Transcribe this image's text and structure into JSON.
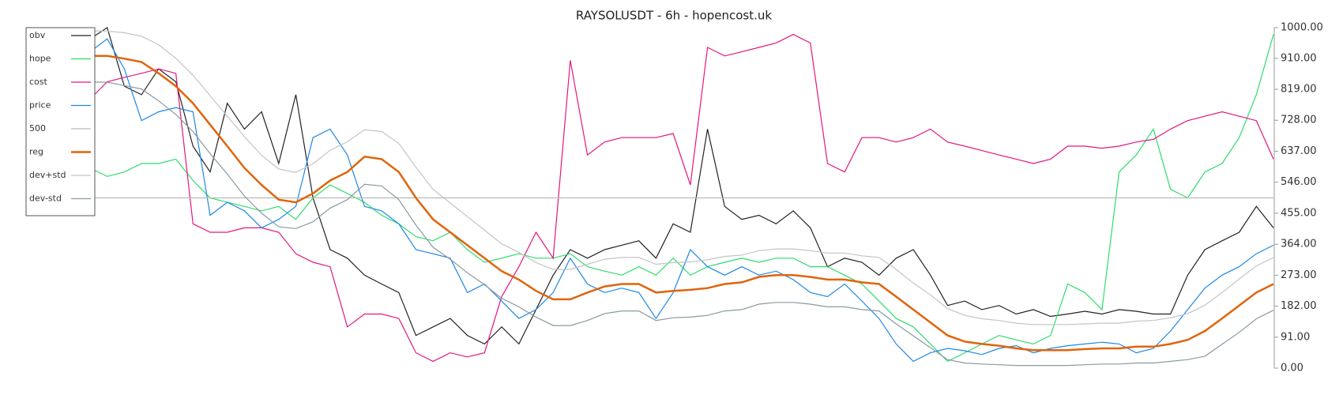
{
  "chart_data": {
    "type": "line",
    "title": "RAYSOLUSDT - 6h - hopencost.uk",
    "legend": "upper left",
    "ylim": [
      0,
      1000
    ],
    "yticks": [
      {
        "value": 0,
        "label": "0.00"
      },
      {
        "value": 91,
        "label": "91.00"
      },
      {
        "value": 182,
        "label": "182.00"
      },
      {
        "value": 273,
        "label": "273.00"
      },
      {
        "value": 364,
        "label": "364.00"
      },
      {
        "value": 455,
        "label": "455.00"
      },
      {
        "value": 546,
        "label": "546.00"
      },
      {
        "value": 637,
        "label": "637.00"
      },
      {
        "value": 728,
        "label": "728.00"
      },
      {
        "value": 819,
        "label": "819.00"
      },
      {
        "value": 910,
        "label": "910.00"
      },
      {
        "value": 1000,
        "label": "1000.00"
      }
    ],
    "series": [
      {
        "name": "obv",
        "color": "#222222",
        "values": [
          967,
          1000,
          828,
          803,
          879,
          841,
          652,
          576,
          778,
          702,
          753,
          601,
          803,
          500,
          348,
          323,
          273,
          247,
          222,
          96,
          121,
          146,
          96,
          71,
          121,
          71,
          172,
          273,
          348,
          323,
          348,
          361,
          374,
          323,
          424,
          399,
          702,
          475,
          437,
          449,
          424,
          462,
          412,
          298,
          323,
          311,
          273,
          323,
          348,
          273,
          184,
          197,
          172,
          184,
          159,
          172,
          152,
          159,
          167,
          159,
          172,
          167,
          159,
          159,
          273,
          348,
          374,
          399,
          475,
          412
        ]
      },
      {
        "name": "hope",
        "color": "#2fdc6e",
        "values": [
          588,
          563,
          576,
          601,
          601,
          614,
          551,
          500,
          487,
          475,
          462,
          475,
          437,
          500,
          538,
          513,
          487,
          449,
          424,
          386,
          374,
          399,
          348,
          311,
          323,
          336,
          323,
          323,
          336,
          298,
          285,
          273,
          298,
          273,
          323,
          273,
          298,
          311,
          323,
          311,
          323,
          323,
          298,
          298,
          273,
          247,
          197,
          146,
          121,
          71,
          20,
          45,
          71,
          96,
          83,
          71,
          96,
          247,
          222,
          172,
          576,
          626,
          702,
          525,
          500,
          576,
          601,
          677,
          803,
          980
        ]
      },
      {
        "name": "cost",
        "color": "#e3177f",
        "values": [
          790,
          841,
          854,
          866,
          879,
          866,
          424,
          399,
          399,
          412,
          412,
          399,
          336,
          311,
          298,
          121,
          159,
          159,
          146,
          45,
          20,
          45,
          33,
          45,
          210,
          298,
          399,
          323,
          904,
          626,
          664,
          677,
          677,
          677,
          689,
          538,
          942,
          917,
          929,
          942,
          955,
          980,
          955,
          601,
          576,
          677,
          677,
          664,
          677,
          702,
          664,
          652,
          639,
          626,
          614,
          601,
          614,
          652,
          652,
          646,
          652,
          664,
          672,
          702,
          727,
          740,
          753,
          740,
          727,
          614
        ]
      },
      {
        "name": "price",
        "color": "#1e88e5",
        "values": [
          929,
          967,
          879,
          727,
          753,
          765,
          753,
          449,
          487,
          462,
          412,
          437,
          475,
          677,
          702,
          626,
          475,
          462,
          424,
          348,
          336,
          323,
          222,
          247,
          197,
          146,
          172,
          222,
          323,
          247,
          222,
          235,
          222,
          146,
          222,
          348,
          298,
          273,
          298,
          273,
          285,
          260,
          222,
          210,
          247,
          197,
          146,
          71,
          20,
          45,
          58,
          51,
          40,
          58,
          66,
          45,
          58,
          66,
          71,
          76,
          71,
          45,
          58,
          109,
          172,
          235,
          273,
          298,
          336,
          361
        ]
      },
      {
        "name": "500",
        "color": "#bbbbbb",
        "values": [
          500,
          500,
          500,
          500,
          500,
          500,
          500,
          500,
          500,
          500,
          500,
          500,
          500,
          500,
          500,
          500,
          500,
          500,
          500,
          500,
          500,
          500,
          500,
          500,
          500,
          500,
          500,
          500,
          500,
          500,
          500,
          500,
          500,
          500,
          500,
          500,
          500,
          500,
          500,
          500,
          500,
          500,
          500,
          500,
          500,
          500,
          500,
          500,
          500,
          500,
          500,
          500,
          500,
          500,
          500,
          500,
          500,
          500,
          500,
          500,
          500,
          500,
          500,
          500,
          500,
          500,
          500,
          500,
          500,
          500
        ]
      },
      {
        "name": "reg",
        "color": "#e0640c",
        "values": [
          917,
          917,
          909,
          899,
          866,
          828,
          778,
          715,
          652,
          588,
          538,
          495,
          487,
          513,
          551,
          576,
          621,
          614,
          576,
          500,
          437,
          399,
          361,
          323,
          285,
          260,
          227,
          202,
          202,
          222,
          240,
          247,
          247,
          222,
          227,
          230,
          235,
          247,
          252,
          268,
          273,
          273,
          268,
          260,
          260,
          252,
          247,
          210,
          172,
          134,
          96,
          78,
          71,
          66,
          58,
          53,
          53,
          53,
          56,
          58,
          58,
          63,
          63,
          71,
          83,
          109,
          146,
          184,
          222,
          247
        ]
      },
      {
        "name": "dev+std",
        "color": "#c4c4c4",
        "values": [
          990,
          990,
          985,
          975,
          950,
          910,
          860,
          800,
          740,
          680,
          625,
          585,
          575,
          600,
          640,
          665,
          700,
          695,
          660,
          590,
          525,
          485,
          445,
          405,
          365,
          340,
          310,
          290,
          290,
          305,
          320,
          325,
          325,
          305,
          310,
          312,
          318,
          328,
          332,
          345,
          350,
          350,
          345,
          338,
          338,
          330,
          325,
          290,
          250,
          215,
          175,
          155,
          145,
          140,
          132,
          128,
          128,
          128,
          130,
          132,
          132,
          138,
          140,
          148,
          160,
          185,
          222,
          262,
          300,
          325
        ]
      },
      {
        "name": "dev-std",
        "color": "#8a9aa0",
        "values": [
          840,
          840,
          830,
          820,
          785,
          745,
          695,
          630,
          570,
          505,
          455,
          415,
          410,
          430,
          470,
          495,
          540,
          535,
          495,
          420,
          355,
          320,
          280,
          245,
          205,
          180,
          150,
          125,
          125,
          140,
          160,
          168,
          168,
          140,
          148,
          150,
          155,
          168,
          172,
          188,
          193,
          193,
          188,
          180,
          180,
          172,
          168,
          130,
          95,
          60,
          25,
          15,
          12,
          10,
          8,
          8,
          8,
          8,
          10,
          12,
          12,
          15,
          15,
          20,
          25,
          35,
          70,
          105,
          145,
          170
        ]
      }
    ]
  }
}
